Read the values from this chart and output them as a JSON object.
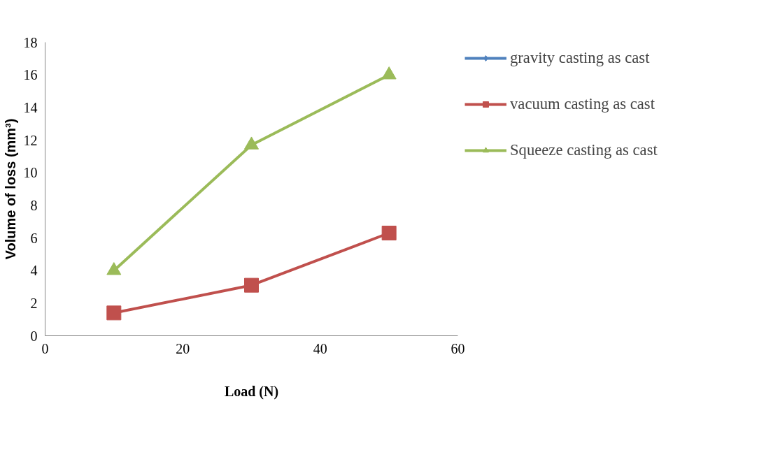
{
  "chart_data": {
    "type": "line",
    "xlabel": "Load (N)",
    "ylabel": "Volume of loss (mm³)",
    "x": [
      10,
      30,
      50
    ],
    "series": [
      {
        "name": "gravity casting as cast",
        "color": "#4f81bd",
        "marker": "diamond",
        "values": [
          null,
          null,
          null
        ]
      },
      {
        "name": "vacuum casting as cast",
        "color": "#c0504d",
        "marker": "square",
        "values": [
          1.4,
          3.1,
          6.3
        ]
      },
      {
        "name": "Squeeze casting as cast",
        "color": "#9bbb59",
        "marker": "triangle",
        "values": [
          4.0,
          11.7,
          16.0
        ]
      }
    ],
    "xlim": [
      0,
      60
    ],
    "xticks": [
      0,
      20,
      40,
      60
    ],
    "ylim": [
      0,
      18
    ],
    "yticks": [
      0,
      2,
      4,
      6,
      8,
      10,
      12,
      14,
      16,
      18
    ],
    "grid": false,
    "legend": "right"
  }
}
